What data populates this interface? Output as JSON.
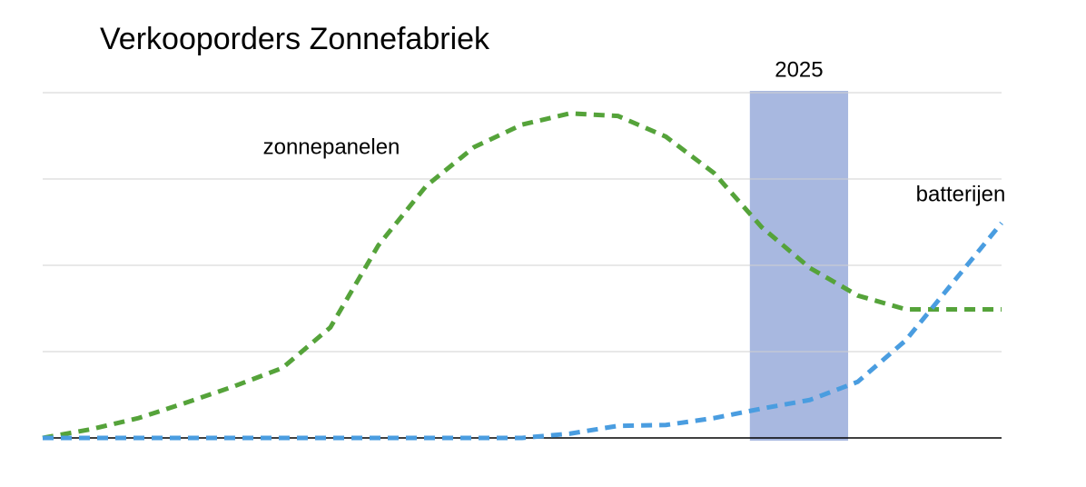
{
  "chart_data": {
    "type": "line",
    "title": "Verkooporders Zonnefabriek",
    "categories": [
      null,
      null,
      null,
      null,
      null,
      null,
      null,
      null,
      null,
      null,
      null,
      null,
      null,
      null,
      null,
      null,
      null,
      null,
      null,
      null,
      null
    ],
    "series": [
      {
        "name": "zonnepanelen",
        "color": "#55a33a",
        "values": [
          0,
          0.1,
          0.23,
          0.41,
          0.6,
          0.81,
          1.28,
          2.23,
          2.92,
          3.37,
          3.63,
          3.76,
          3.73,
          3.49,
          3.07,
          2.44,
          1.97,
          1.65,
          1.49,
          1.49,
          1.49
        ]
      },
      {
        "name": "batterijen",
        "color": "#4a9de0",
        "values": [
          0,
          0,
          0,
          0,
          0,
          0,
          0,
          0,
          0,
          0,
          0,
          0.05,
          0.14,
          0.15,
          0.23,
          0.34,
          0.44,
          0.65,
          1.13,
          1.81,
          2.49
        ]
      }
    ],
    "highlight": {
      "label": "2025",
      "from": 14.75,
      "to": 16.8,
      "color": "#a8b8e0"
    },
    "ylim": [
      0,
      4
    ],
    "yticks": [
      0,
      1,
      2,
      3,
      4
    ],
    "grid": true
  }
}
